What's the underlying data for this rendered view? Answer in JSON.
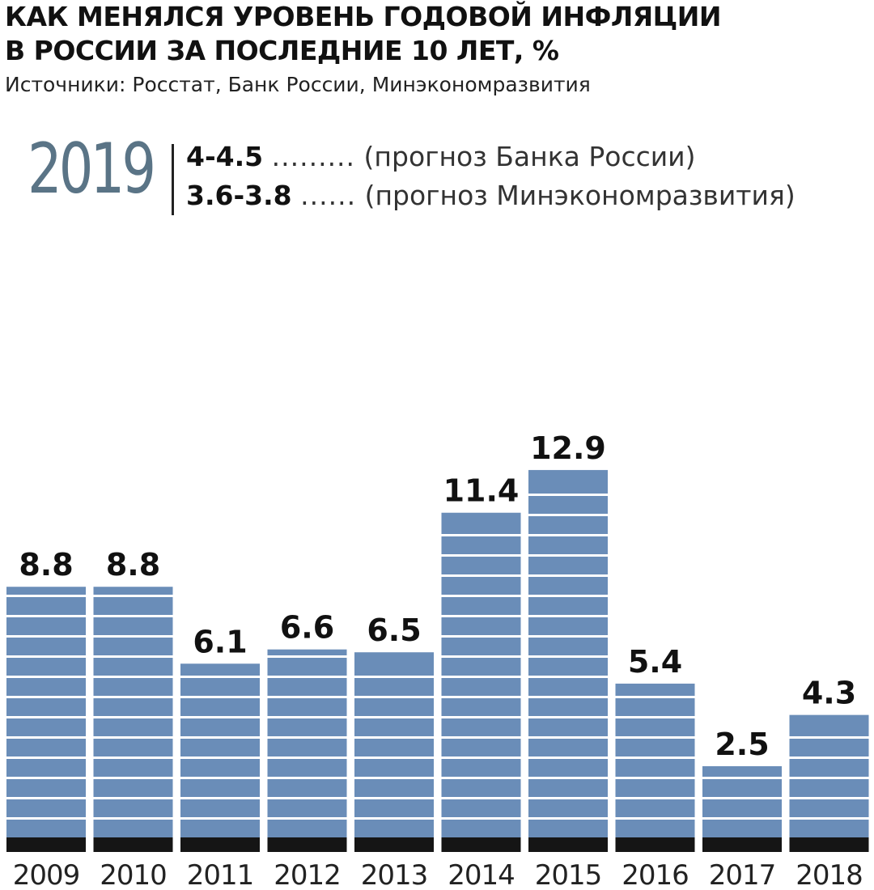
{
  "header": {
    "title_line1": "КАК МЕНЯЛСЯ УРОВЕНЬ ГОДОВОЙ ИНФЛЯЦИИ",
    "title_line2": "В РОССИИ ЗА ПОСЛЕДНИЕ 10 ЛЕТ, %",
    "source": "Источники: Росстат, Банк России, Минэкономразвития"
  },
  "forecast": {
    "year": "2019",
    "rows": [
      {
        "value": "4-4.5",
        "dots": ".........",
        "note": "(прогноз Банка России)"
      },
      {
        "value": "3.6-3.8",
        "dots": "......",
        "note": "(прогноз Минэкономразвития)"
      }
    ]
  },
  "colors": {
    "bar": "#6a8db8",
    "stripe": "#ffffff",
    "base": "#151515",
    "forecast_year": "#5a7486",
    "text": "#111111"
  },
  "chart_data": {
    "type": "bar",
    "title": "КАК МЕНЯЛСЯ УРОВЕНЬ ГОДОВОЙ ИНФЛЯЦИИ В РОССИИ ЗА ПОСЛЕДНИЕ 10 ЛЕТ, %",
    "categories": [
      "2009",
      "2010",
      "2011",
      "2012",
      "2013",
      "2014",
      "2015",
      "2016",
      "2017",
      "2018"
    ],
    "values": [
      8.8,
      8.8,
      6.1,
      6.6,
      6.5,
      11.4,
      12.9,
      5.4,
      2.5,
      4.3
    ],
    "value_labels": [
      "8.8",
      "8.8",
      "6.1",
      "6.6",
      "6.5",
      "11.4",
      "12.9",
      "5.4",
      "2.5",
      "4.3"
    ],
    "ylim": [
      0,
      14
    ],
    "grid": false,
    "legend": "none"
  }
}
